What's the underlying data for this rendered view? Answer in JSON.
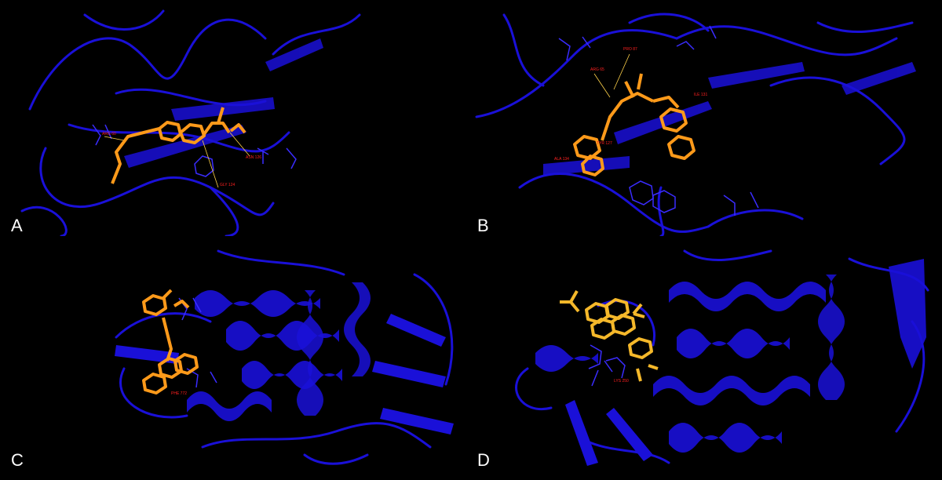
{
  "panels": [
    {
      "letter": "A",
      "residues": [
        "ARG 60",
        "ASN 126",
        "GLY 124"
      ]
    },
    {
      "letter": "B",
      "residues": [
        "PRO 87",
        "ARG 65",
        "ILE 131",
        "TYR 127",
        "ALA 134"
      ]
    },
    {
      "letter": "C",
      "residues": [
        "PHE 772"
      ]
    },
    {
      "letter": "D",
      "residues": [
        "LYS 250"
      ]
    }
  ],
  "colors": {
    "protein": "#1a10d8",
    "ligand": "#ff9a1a",
    "ligand_d": "#f5b82a",
    "label": "#ff2020",
    "background": "#000000",
    "border": "#ffffff"
  }
}
